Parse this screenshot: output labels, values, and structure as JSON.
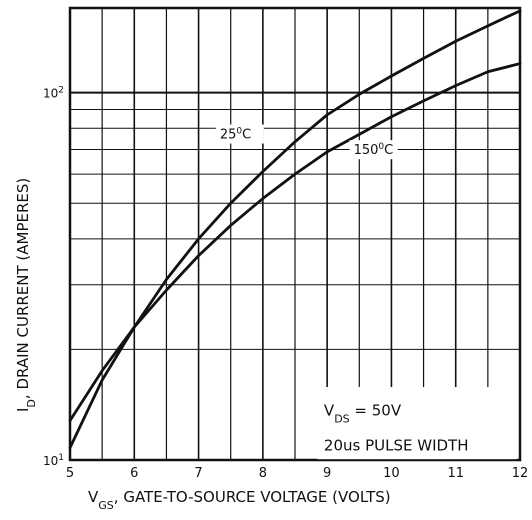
{
  "chart_data": {
    "type": "line",
    "title": "",
    "xlabel": {
      "main": "V",
      "sub": "GS",
      "rest": ", GATE-TO-SOURCE VOLTAGE (VOLTS)"
    },
    "ylabel": {
      "main": "I",
      "sub": "D",
      "rest": ", DRAIN CURRENT (AMPERES)"
    },
    "xlim": [
      5,
      12
    ],
    "ylim": [
      10,
      170
    ],
    "yscale": "log",
    "grid": true,
    "x_ticks": [
      "5",
      "6",
      "7",
      "8",
      "9",
      "10",
      "11",
      "12"
    ],
    "y_ticks": [
      {
        "value": 10,
        "base": "10",
        "exp": "1"
      },
      {
        "value": 100,
        "base": "10",
        "exp": "2"
      }
    ],
    "series": [
      {
        "name": "25°C",
        "x": [
          5.0,
          5.5,
          6.0,
          6.5,
          7.0,
          7.5,
          8.0,
          8.5,
          9.0,
          9.5,
          10.0,
          10.5,
          11.0,
          11.5,
          12.0
        ],
        "y": [
          10.8,
          16.5,
          23.0,
          31.0,
          40.0,
          50.0,
          61.0,
          73.5,
          87.0,
          99.0,
          111.0,
          124.0,
          138.0,
          152.0,
          167.0
        ]
      },
      {
        "name": "150°C",
        "x": [
          5.0,
          5.5,
          6.0,
          6.5,
          7.0,
          7.5,
          8.0,
          8.5,
          9.0,
          9.5,
          10.0,
          10.5,
          11.0,
          11.5,
          12.0
        ],
        "y": [
          12.8,
          17.5,
          23.0,
          29.0,
          36.0,
          43.5,
          51.5,
          60.0,
          69.0,
          77.0,
          86.0,
          95.0,
          104.5,
          114.0,
          120.0
        ]
      }
    ],
    "curve_labels": [
      {
        "series": 0,
        "text_main": "25",
        "text_sup": "0",
        "text_unit": "C"
      },
      {
        "series": 1,
        "text_main": "150",
        "text_sup": "0",
        "text_unit": "C"
      }
    ],
    "annotation": {
      "line1_main": "V",
      "line1_sub": "DS",
      "line1_rest": " = 50V",
      "line2": "20us PULSE WIDTH"
    }
  }
}
